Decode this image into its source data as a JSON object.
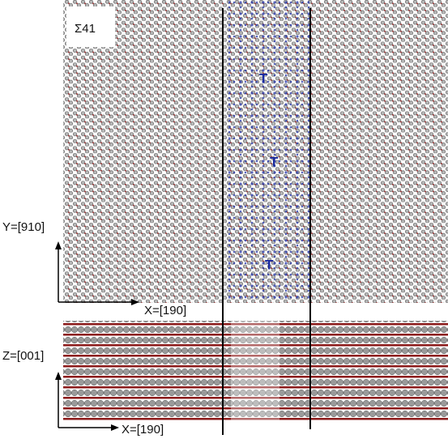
{
  "labels": {
    "sigma": "Σ41",
    "top_y_axis": "Y=[910]",
    "top_x_axis": "X=[190]",
    "bottom_z_axis": "Z=[001]",
    "bottom_x_axis": "X=[190]",
    "dislocations": [
      "T",
      "T",
      "T"
    ]
  }
}
